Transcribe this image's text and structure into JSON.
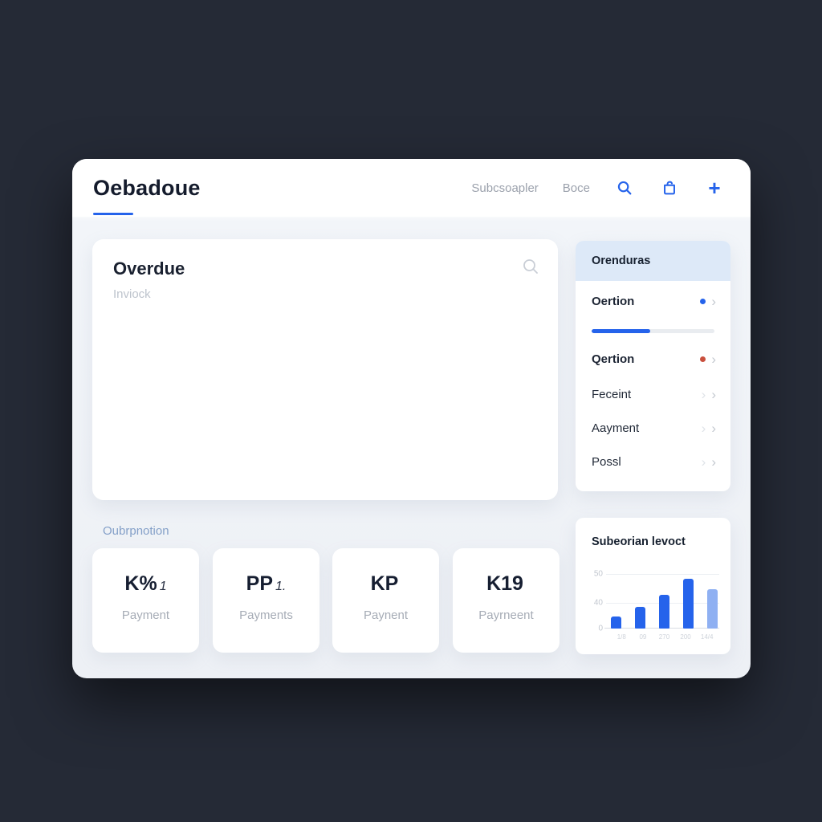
{
  "colors": {
    "page_background": "#252a36",
    "accent_blue": "#2563eb",
    "light_bar_blue": "#8fb0f2",
    "sidebar_header_bg": "#dde9f8",
    "red_dot": "#c94f3d",
    "section_label": "#84a0c8"
  },
  "header": {
    "title": "Oebadoue",
    "nav": [
      {
        "label": "Subcsoapler"
      },
      {
        "label": "Boce"
      }
    ],
    "icons": [
      {
        "name": "search-icon"
      },
      {
        "name": "bag-icon"
      },
      {
        "name": "plus-icon"
      }
    ]
  },
  "main_card": {
    "title": "Overdue",
    "subtitle": "Inviock"
  },
  "sidebar": {
    "header": "Orenduras",
    "items": [
      {
        "label": "Oertion",
        "indicator": "blue-dot",
        "progress_percent": 48
      },
      {
        "label": "Qertion",
        "indicator": "red-dot"
      },
      {
        "label": "Feceint",
        "indicator": "chevrons"
      },
      {
        "label": "Aayment",
        "indicator": "chevrons"
      },
      {
        "label": "Possl",
        "indicator": "chevrons"
      }
    ]
  },
  "section_label": "Oubrpnotion",
  "stat_cards": [
    {
      "value_main": "K%",
      "value_suffix": "1",
      "label": "Payment"
    },
    {
      "value_main": "PP",
      "value_suffix": "1.",
      "label": "Payments"
    },
    {
      "value_main": "KP",
      "value_suffix": "",
      "label": "Paynent"
    },
    {
      "value_main": "K19",
      "value_suffix": "",
      "label": "Payrneent"
    }
  ],
  "chart_data": {
    "type": "bar",
    "title": "Subeorian levoct",
    "categories": [
      "1/8",
      "09",
      "270",
      "200",
      "14/4"
    ],
    "values": [
      12,
      22,
      34,
      50,
      40
    ],
    "bar_colors": [
      "#2563eb",
      "#2563eb",
      "#2563eb",
      "#2563eb",
      "#8fb0f2"
    ],
    "ylim": [
      0,
      55
    ],
    "ytick_labels": [
      "50",
      "40",
      "0"
    ],
    "xlabel": "",
    "ylabel": "",
    "grid": true,
    "legend": false
  }
}
